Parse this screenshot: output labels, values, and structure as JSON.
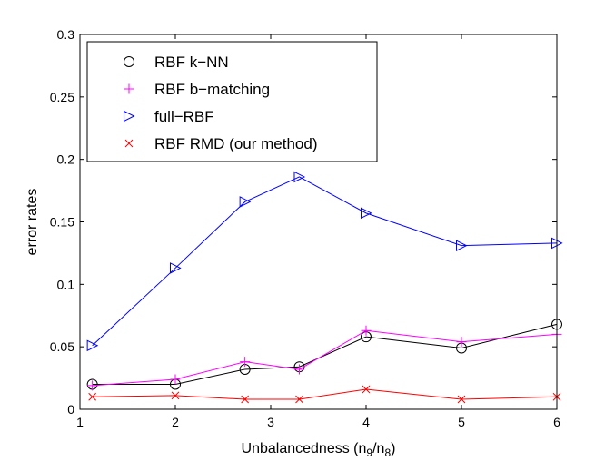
{
  "chart_data": {
    "type": "line",
    "title": "",
    "xlabel": "Unbalancedness (n",
    "xlabel_sub1": "9",
    "xlabel_mid": "/n",
    "xlabel_sub2": "8",
    "xlabel_end": ")",
    "ylabel": "error rates",
    "xlim": [
      1,
      6
    ],
    "ylim": [
      0,
      0.3
    ],
    "xticks": [
      1,
      2,
      3,
      4,
      5,
      6
    ],
    "xtick_labels": [
      "1",
      "2",
      "3",
      "4",
      "5",
      "6"
    ],
    "yticks": [
      0,
      0.05,
      0.1,
      0.15,
      0.2,
      0.25,
      0.3
    ],
    "ytick_labels": [
      "0",
      "0.05",
      "0.1",
      "0.15",
      "0.2",
      "0.25",
      "0.3"
    ],
    "grid": false,
    "legend_position": "top-left",
    "x": [
      1.13,
      2.0,
      2.73,
      3.3,
      4.0,
      5.0,
      6.0
    ],
    "series": [
      {
        "name": "RBF k−NN",
        "color": "#000000",
        "marker": "circle",
        "values": [
          0.02,
          0.02,
          0.032,
          0.034,
          0.058,
          0.049,
          0.068
        ]
      },
      {
        "name": "RBF b−matching",
        "color": "#ff00ff",
        "marker": "plus",
        "values": [
          0.019,
          0.024,
          0.038,
          0.032,
          0.063,
          0.054,
          0.06
        ]
      },
      {
        "name": "full−RBF",
        "color": "#0000ff",
        "marker": "triangle-right",
        "values": [
          0.051,
          0.113,
          0.166,
          0.186,
          0.157,
          0.131,
          0.133
        ]
      },
      {
        "name": "RBF RMD (our method)",
        "color": "#ff0000",
        "marker": "x",
        "values": [
          0.01,
          0.011,
          0.008,
          0.008,
          0.016,
          0.008,
          0.01
        ]
      }
    ]
  }
}
